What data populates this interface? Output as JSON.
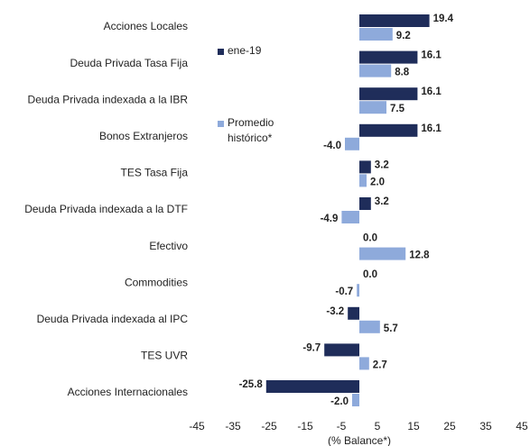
{
  "chart_data": {
    "type": "hbar",
    "categories": [
      "Acciones Locales",
      "Deuda Privada Tasa Fija",
      "Deuda Privada indexada a la IBR",
      "Bonos Extranjeros",
      "TES Tasa Fija",
      "Deuda Privada indexada a la DTF",
      "Efectivo",
      "Commodities",
      "Deuda Privada indexada al IPC",
      "TES UVR",
      "Acciones Internacionales"
    ],
    "series": [
      {
        "name": "ene-19",
        "color": "#1f2d5a",
        "values": [
          19.4,
          16.1,
          16.1,
          16.1,
          3.2,
          3.2,
          0,
          0,
          -3.2,
          -9.7,
          -25.8
        ],
        "value_labels": [
          "19.4",
          "16.1",
          "16.1",
          "16.1",
          "3.2",
          "3.2",
          "0.0",
          "0.0",
          "-3.2",
          "-9.7",
          "-25.8"
        ]
      },
      {
        "name": "Promedio histórico*",
        "color": "#8eaadb",
        "values": [
          9.2,
          8.8,
          7.5,
          -4.0,
          2.0,
          -4.9,
          12.8,
          -0.7,
          5.7,
          2.7,
          -2.0
        ],
        "value_labels": [
          "9.2",
          "8.8",
          "7.5",
          "-4.0",
          "2.0",
          "-4.9",
          "12.8",
          "-0.7",
          "5.7",
          "2.7",
          "-2.0"
        ]
      }
    ],
    "xlabel": "(% Balance*)",
    "xlim": [
      -45,
      45
    ],
    "xticks": [
      -45,
      -35,
      -25,
      -15,
      -5,
      5,
      15,
      25,
      35,
      45
    ]
  }
}
